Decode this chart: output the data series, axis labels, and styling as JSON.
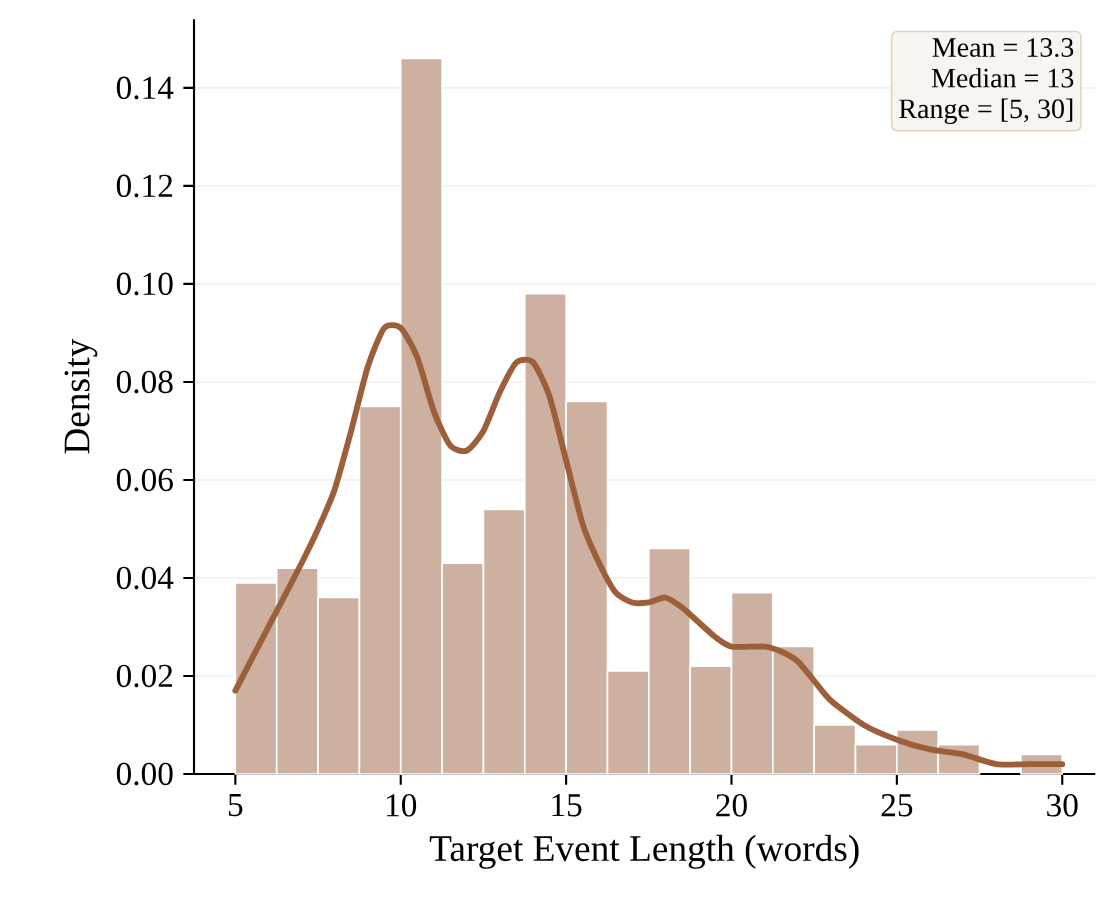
{
  "chart_data": {
    "type": "histogram",
    "xlabel": "Target Event Length (words)",
    "ylabel": "Density",
    "annotations": [
      "Mean = 13.3",
      "Median = 13",
      "Range = [5, 30]"
    ],
    "series": [
      {
        "color": "#cdb0a0",
        "bins": [
          5,
          6.25,
          7.5,
          8.75,
          10,
          11.25,
          12.5,
          13.75,
          15,
          16.25,
          17.5,
          18.75,
          20,
          21.25,
          22.5,
          23.75,
          25,
          26.25,
          27.5,
          28.75,
          30
        ],
        "values": [
          0.039,
          0.042,
          0.036,
          0.075,
          0.146,
          0.043,
          0.054,
          0.098,
          0.076,
          0.021,
          0.046,
          0.022,
          0.037,
          0.026,
          0.01,
          0.006,
          0.009,
          0.006,
          0,
          0.004
        ]
      },
      {
        "type": "line",
        "color": "#9c5f3a",
        "x": [
          5,
          6,
          7,
          7.5,
          8,
          8.5,
          9,
          9.5,
          10,
          10.5,
          11,
          11.5,
          12,
          12.5,
          13,
          13.5,
          14,
          14.5,
          15,
          15.5,
          16,
          16.5,
          17,
          17.5,
          18,
          18.5,
          19,
          19.5,
          20,
          21,
          21.5,
          22,
          22.5,
          23,
          24,
          25,
          26,
          27,
          28,
          29,
          30
        ],
        "values": [
          0.017,
          0.03,
          0.043,
          0.05,
          0.058,
          0.07,
          0.083,
          0.091,
          0.091,
          0.085,
          0.074,
          0.067,
          0.066,
          0.07,
          0.078,
          0.084,
          0.084,
          0.077,
          0.064,
          0.051,
          0.043,
          0.037,
          0.035,
          0.035,
          0.036,
          0.034,
          0.031,
          0.028,
          0.026,
          0.026,
          0.025,
          0.023,
          0.019,
          0.015,
          0.01,
          0.007,
          0.005,
          0.004,
          0.002,
          0.002,
          0.002
        ]
      }
    ],
    "xlim": [
      3.75,
      31
    ],
    "ylim": [
      0,
      0.154
    ],
    "xticks": [
      5,
      10,
      15,
      20,
      25,
      30
    ],
    "yticks": [
      {
        "value": 0,
        "label": "0.00"
      },
      {
        "value": 0.02,
        "label": "0.02"
      },
      {
        "value": 0.04,
        "label": "0.04"
      },
      {
        "value": 0.06,
        "label": "0.06"
      },
      {
        "value": 0.08,
        "label": "0.08"
      },
      {
        "value": 0.1,
        "label": "0.10"
      },
      {
        "value": 0.12,
        "label": "0.12"
      },
      {
        "value": 0.14,
        "label": "0.14"
      }
    ],
    "grid": "y"
  }
}
